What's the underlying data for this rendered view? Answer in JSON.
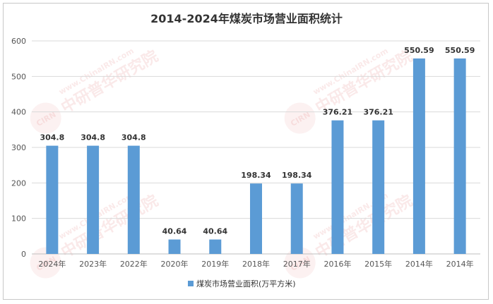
{
  "chart_data": {
    "type": "bar",
    "title": "2014-2024年煤炭市场营业面积统计",
    "categories": [
      "2024年",
      "2023年",
      "2022年",
      "2020年",
      "2019年",
      "2018年",
      "2017年",
      "2016年",
      "2015年",
      "2014年",
      "2014年"
    ],
    "series": [
      {
        "name": "煤炭市场营业面积(万平方米)",
        "values": [
          304.8,
          304.8,
          304.8,
          40.64,
          40.64,
          198.34,
          198.34,
          376.21,
          376.21,
          550.59,
          550.59
        ],
        "color": "#5b9bd5"
      }
    ],
    "ylim": [
      0,
      600
    ],
    "yticks": [
      0,
      100,
      200,
      300,
      400,
      500,
      600
    ],
    "grid": true,
    "legend": "bottom-center"
  },
  "watermark": {
    "brand": "中研普华研究院",
    "site": "www.ChinaIRN.com",
    "logo": "CIRN"
  }
}
